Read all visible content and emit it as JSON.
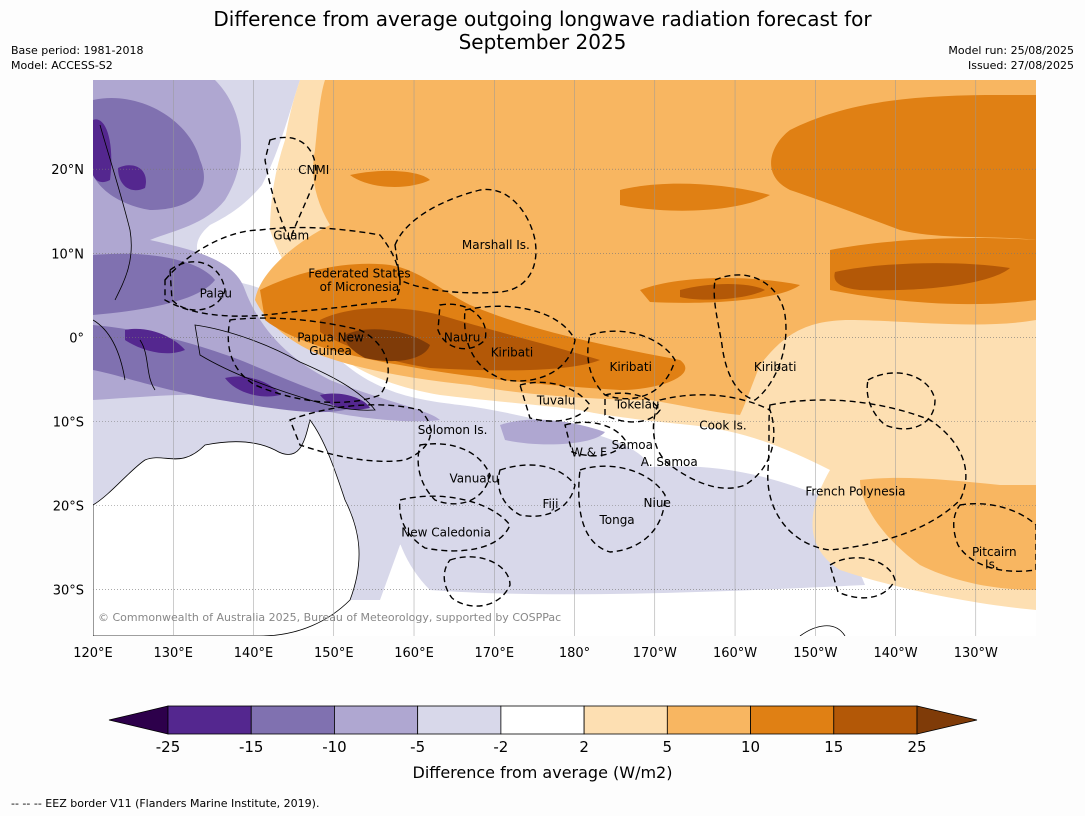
{
  "title_line1": "Difference from average outgoing longwave radiation forecast for",
  "title_line2": "September 2025",
  "meta_left": {
    "base_period": "Base period: 1981-2018",
    "model": "Model: ACCESS-S2"
  },
  "meta_right": {
    "model_run": "Model run: 25/08/2025",
    "issued": "Issued: 27/08/2025"
  },
  "copyright": "© Commonwealth of Australia 2025, Bureau of Meteorology, supported by COSPPac",
  "lon_ticks": [
    "120°E",
    "130°E",
    "140°E",
    "150°E",
    "160°E",
    "170°E",
    "180°",
    "170°W",
    "160°W",
    "150°W",
    "140°W",
    "130°W"
  ],
  "lat_ticks": [
    "20°N",
    "10°N",
    "0°",
    "10°S",
    "20°S",
    "30°S"
  ],
  "region_labels": [
    {
      "text": "CNMI",
      "lon": 147.5,
      "lat": 19.9
    },
    {
      "text": "Guam",
      "lon": 144.7,
      "lat": 12.1
    },
    {
      "text": "Marshall Is.",
      "lon": 170.2,
      "lat": 11.0
    },
    {
      "text": "Federated States",
      "lon": 153.2,
      "lat": 7.6
    },
    {
      "text": "of Micronesia",
      "lon": 153.2,
      "lat": 6.0
    },
    {
      "text": "Palau",
      "lon": 135.3,
      "lat": 5.2
    },
    {
      "text": "Papua New",
      "lon": 149.6,
      "lat": 0.0
    },
    {
      "text": "Guinea",
      "lon": 149.6,
      "lat": -1.6
    },
    {
      "text": "Nauru",
      "lon": 166.0,
      "lat": 0.0
    },
    {
      "text": "Kiribati",
      "lon": 172.2,
      "lat": -1.8
    },
    {
      "text": "Kiribati",
      "lon": 187.0,
      "lat": -3.5
    },
    {
      "text": "Kiribati",
      "lon": 205.0,
      "lat": -3.5
    },
    {
      "text": "Tuvalu",
      "lon": 177.7,
      "lat": -7.5
    },
    {
      "text": "Tokelau",
      "lon": 187.8,
      "lat": -8.0
    },
    {
      "text": "Cook Is.",
      "lon": 198.5,
      "lat": -10.5
    },
    {
      "text": "Solomon Is.",
      "lon": 164.8,
      "lat": -11.0
    },
    {
      "text": "Samoa",
      "lon": 187.2,
      "lat": -12.8
    },
    {
      "text": "W & F",
      "lon": 181.8,
      "lat": -13.7
    },
    {
      "text": "A. Samoa",
      "lon": 191.8,
      "lat": -14.8
    },
    {
      "text": "Vanuatu",
      "lon": 167.5,
      "lat": -16.8
    },
    {
      "text": "French Polynesia",
      "lon": 215.0,
      "lat": -18.3
    },
    {
      "text": "Fiji",
      "lon": 177.0,
      "lat": -19.8
    },
    {
      "text": "Niue",
      "lon": 190.3,
      "lat": -19.7
    },
    {
      "text": "Tonga",
      "lon": 185.3,
      "lat": -21.7
    },
    {
      "text": "New Caledonia",
      "lon": 164.0,
      "lat": -23.2
    },
    {
      "text": "Pitcairn",
      "lon": 232.3,
      "lat": -25.5
    },
    {
      "text": "Is.",
      "lon": 232.0,
      "lat": -27.0
    }
  ],
  "colorbar": {
    "boundaries": [
      "-25",
      "-15",
      "-10",
      "-5",
      "-2",
      "2",
      "5",
      "10",
      "15",
      "25"
    ],
    "colors": [
      "#54278f",
      "#8071b0",
      "#afa7d1",
      "#d8d8ea",
      "#ffffff",
      "#fddfb2",
      "#f8b661",
      "#e08014",
      "#b35807"
    ],
    "under_color": "#2d004b",
    "over_color": "#7f3b08",
    "label": "Difference from average (W/m2)"
  },
  "footer": "-- -- -- EEZ border V11 (Flanders Marine Institute, 2019)."
}
